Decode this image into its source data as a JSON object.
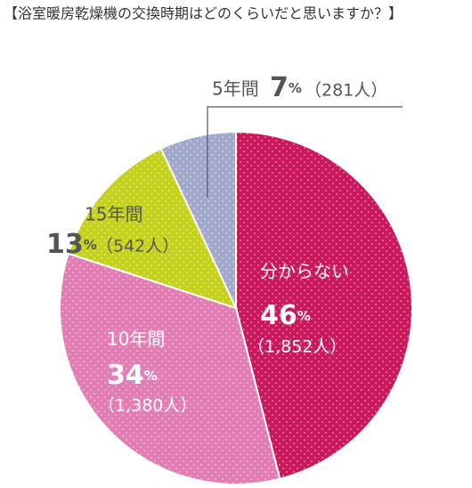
{
  "chart_data": {
    "type": "pie",
    "title": "【浴室暖房乾燥機の交換時期はどのくらいだと思いますか？】",
    "categories": [
      "分からない",
      "10年間",
      "15年間",
      "5年間"
    ],
    "values": [
      46,
      34,
      13,
      7
    ],
    "value_labels": [
      "46%",
      "34%",
      "13%",
      "7%"
    ],
    "count_labels": [
      "（1,852人）",
      "（1,380人）",
      "（542人）",
      "（281人）"
    ],
    "colors": [
      "#c9195c",
      "#e27db4",
      "#c5d21c",
      "#a3a9cc"
    ]
  }
}
